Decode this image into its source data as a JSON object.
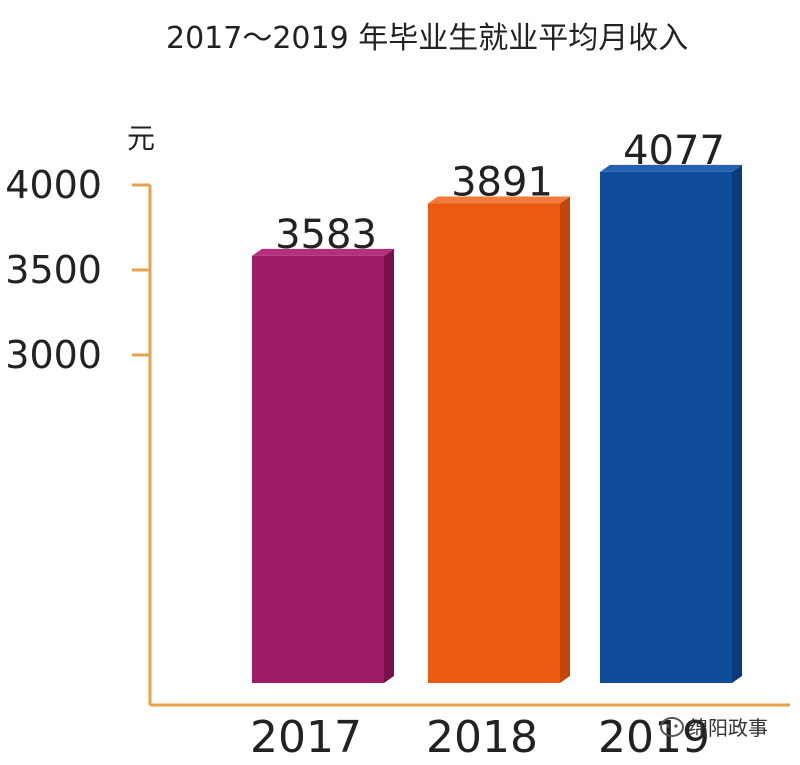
{
  "chart_data": {
    "type": "bar",
    "title": "2017～2019 年毕业生就业平均月收入",
    "ylabel": "元",
    "xlabel": "",
    "categories": [
      "2017",
      "2018",
      "2019"
    ],
    "values": [
      3583,
      3891,
      4077
    ],
    "yticks": [
      3000,
      3500,
      4000
    ],
    "ylim": [
      3000,
      4000
    ],
    "axis_break": true,
    "grid": false,
    "legend": "none",
    "colors": [
      "#9b1b65",
      "#ea5a12",
      "#0f4c9a"
    ],
    "side_colors": [
      "#7a0f4d",
      "#c5460a",
      "#0a3a78"
    ],
    "top_colors": [
      "#b4307c",
      "#f27a3a",
      "#2462b0"
    ],
    "axis_color": "#e8a04a"
  },
  "watermark": {
    "text": "绵阳政事",
    "icon": "wechat-bubble-icon"
  }
}
